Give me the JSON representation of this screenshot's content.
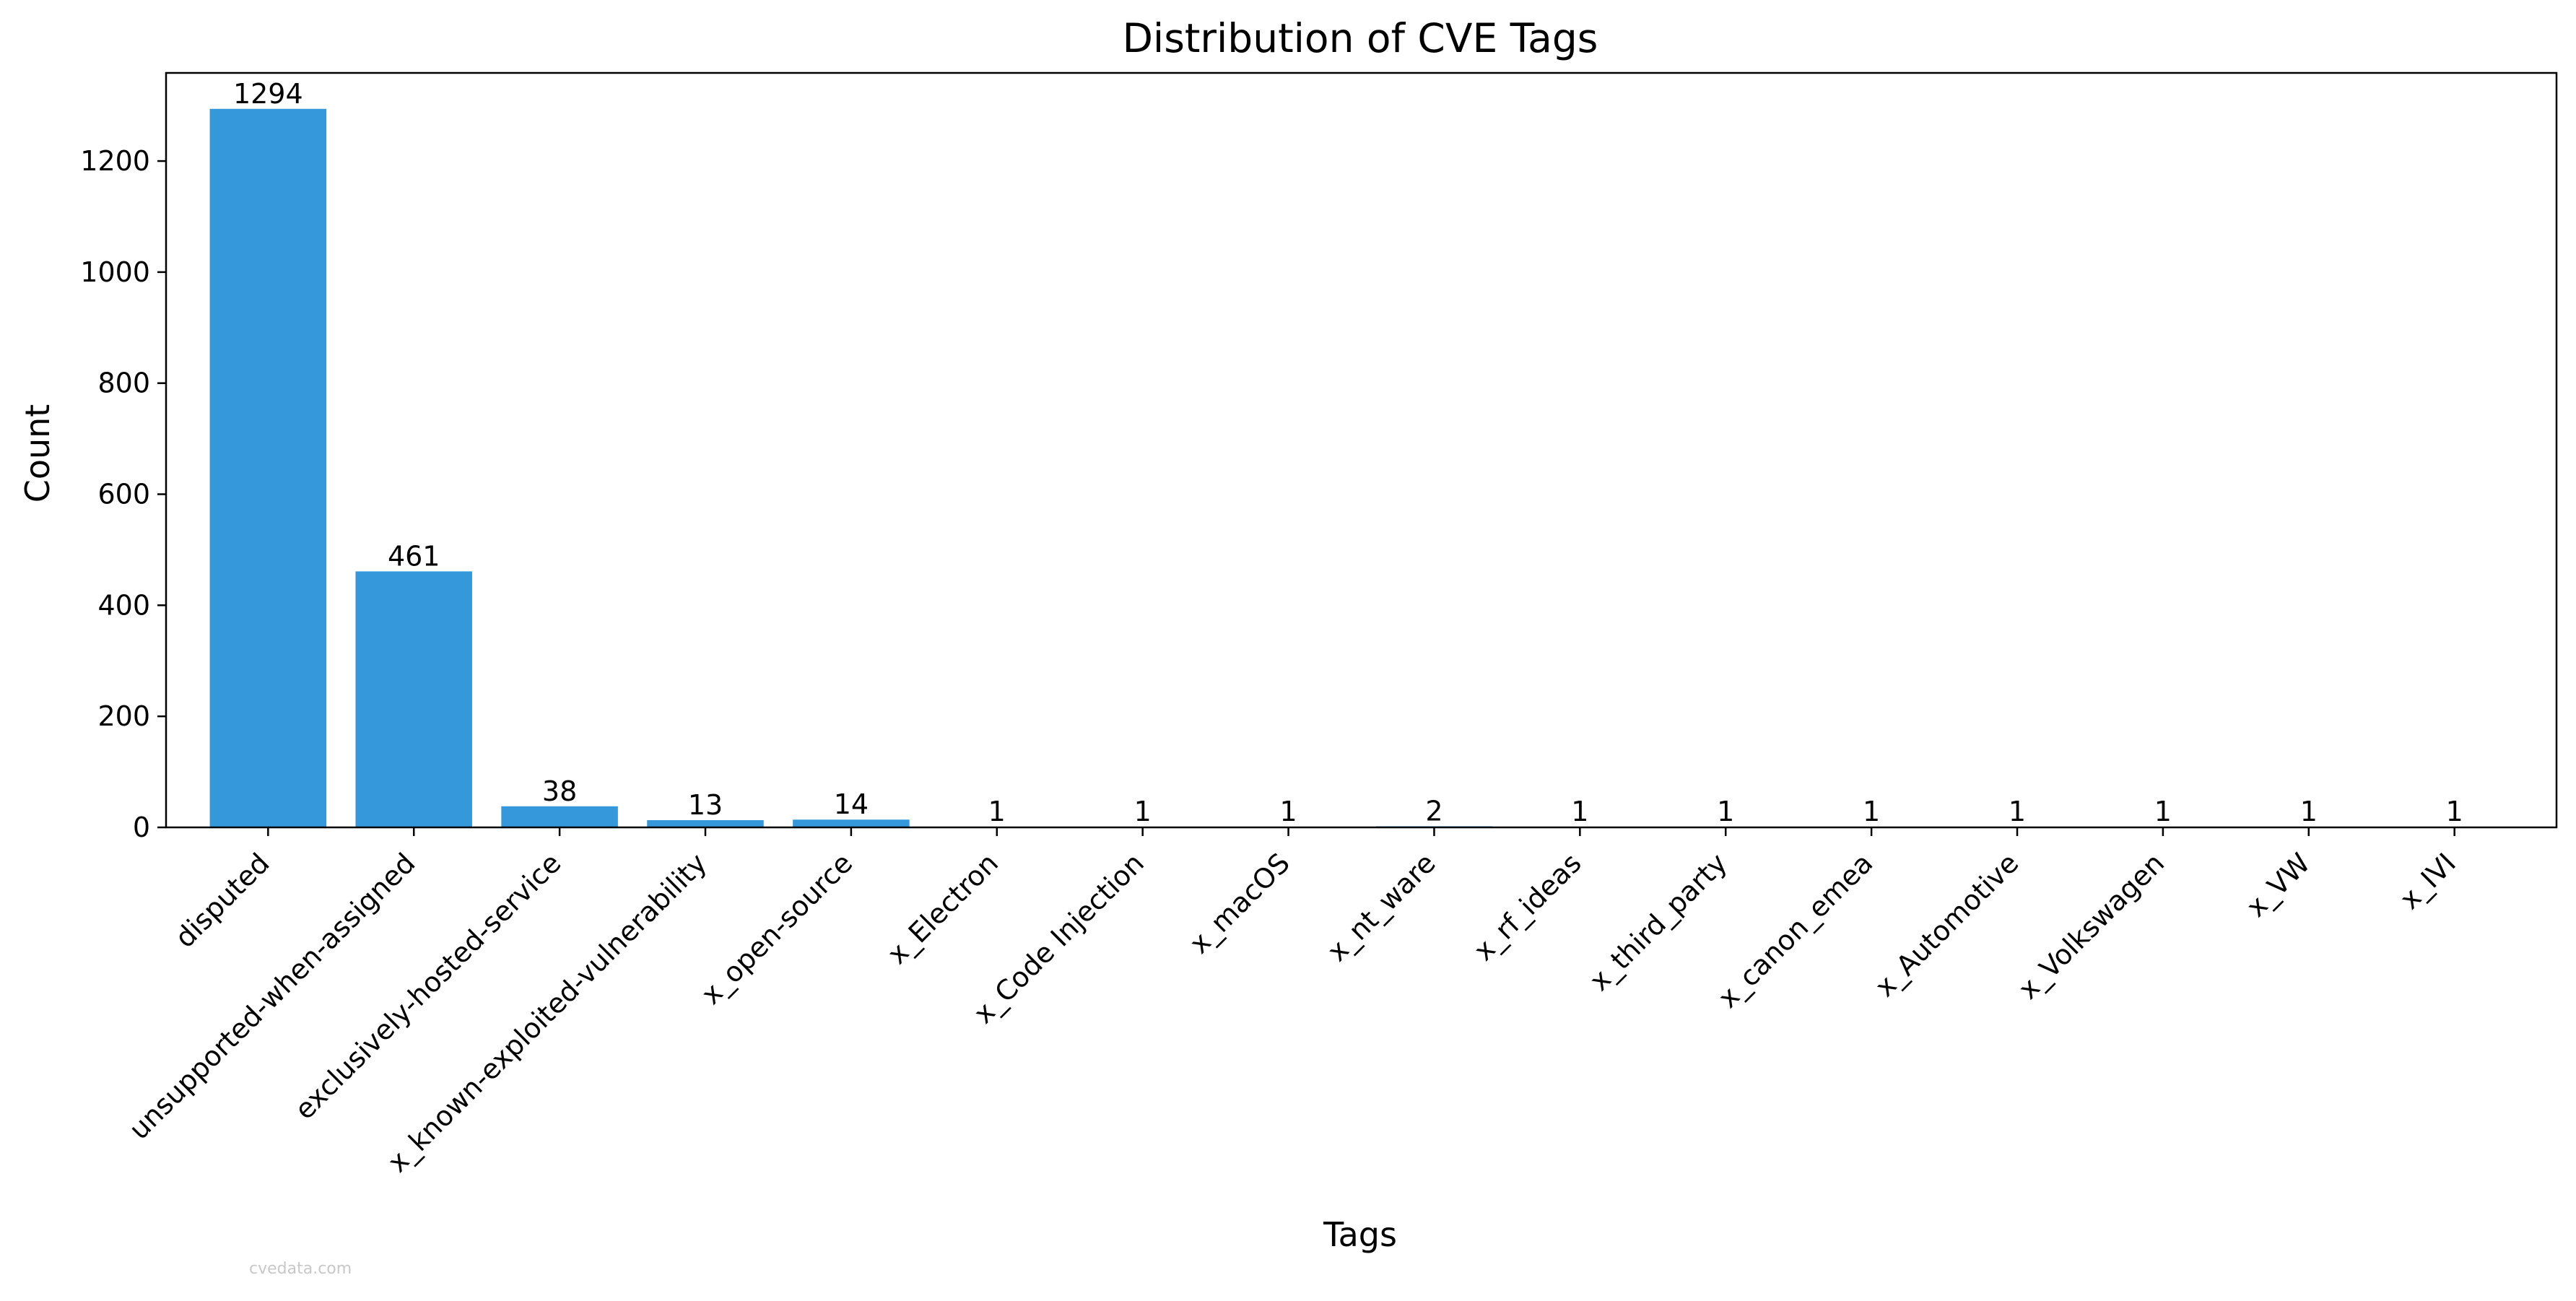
{
  "chart_data": {
    "type": "bar",
    "title": "Distribution of CVE Tags",
    "xlabel": "Tags",
    "ylabel": "Count",
    "categories": [
      "disputed",
      "unsupported-when-assigned",
      "exclusively-hosted-service",
      "x_known-exploited-vulnerability",
      "x_open-source",
      "x_Electron",
      "x_Code Injection",
      "x_macOS",
      "x_nt_ware",
      "x_rf_ideas",
      "x_third_party",
      "x_canon_emea",
      "x_Automotive",
      "x_Volkswagen",
      "x_VW",
      "x_IVI"
    ],
    "values": [
      1294,
      461,
      38,
      13,
      14,
      1,
      1,
      1,
      2,
      1,
      1,
      1,
      1,
      1,
      1,
      1
    ],
    "yticks": [
      0,
      200,
      400,
      600,
      800,
      1000,
      1200
    ],
    "ylim": [
      0,
      1358.7
    ],
    "bar_color": "#3498db",
    "grid": false,
    "legend": "none"
  },
  "watermark": "cvedata.com"
}
